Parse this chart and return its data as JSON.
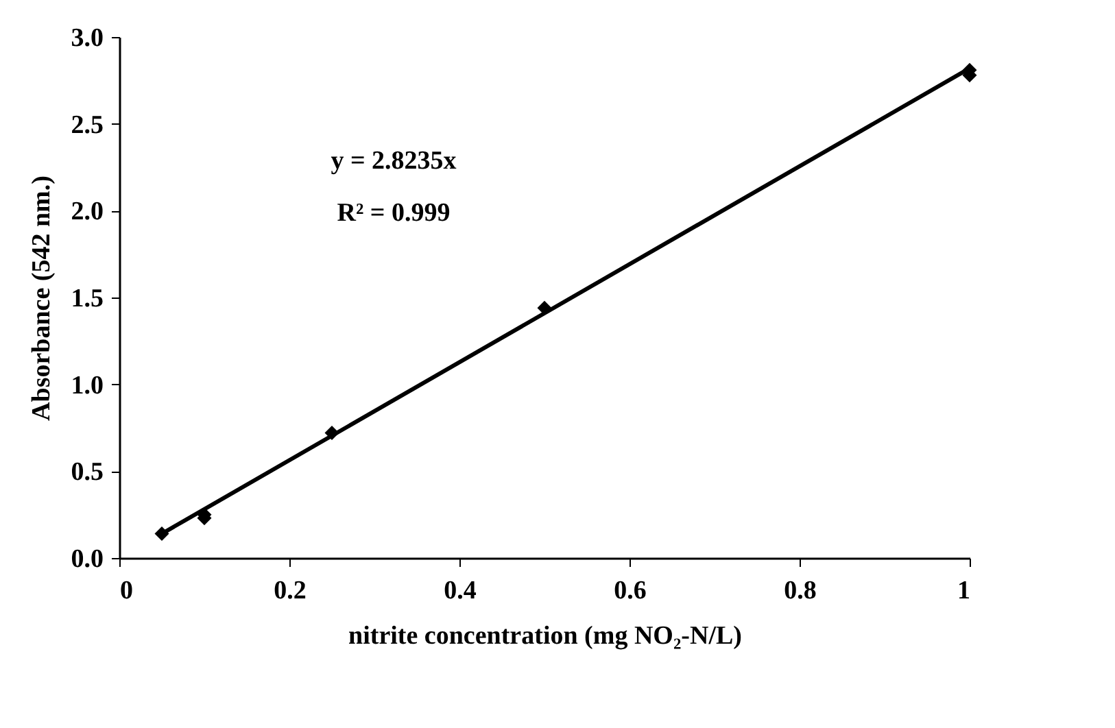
{
  "chart_data": {
    "type": "scatter",
    "xlabel": "nitrite concentration (mg NO₂-N/L)",
    "ylabel": "Absorbance (542 nm.)",
    "xlim": [
      0,
      1
    ],
    "xticks": [
      0,
      0.2,
      0.4,
      0.6,
      0.8,
      1
    ],
    "ylim": [
      0,
      3
    ],
    "yticks": [
      {
        "value": 0,
        "label": "0.0"
      },
      {
        "value": 0.5,
        "label": "0.5"
      },
      {
        "value": 1,
        "label": "1.0"
      },
      {
        "value": 1.5,
        "label": "1.5"
      },
      {
        "value": 2,
        "label": "2.0"
      },
      {
        "value": 2.5,
        "label": "2.5"
      },
      {
        "value": 3,
        "label": "3.0"
      }
    ],
    "grid": false,
    "series": [
      {
        "color": "#000000",
        "marker": "diamond",
        "x": [
          0.05,
          0.1,
          0.1,
          0.25,
          0.5,
          1,
          1
        ],
        "values": [
          0.14,
          0.23,
          0.25,
          0.72,
          1.44,
          2.78,
          2.81
        ]
      },
      {
        "type": "line",
        "color": "#000000",
        "marker": "none",
        "x": [
          0.05,
          1
        ],
        "values": [
          0.14,
          2.82
        ],
        "line_style": "solid"
      }
    ],
    "annotations": [
      {
        "text": "y = 2.8235x"
      },
      {
        "text": "R² = 0.999"
      }
    ]
  }
}
